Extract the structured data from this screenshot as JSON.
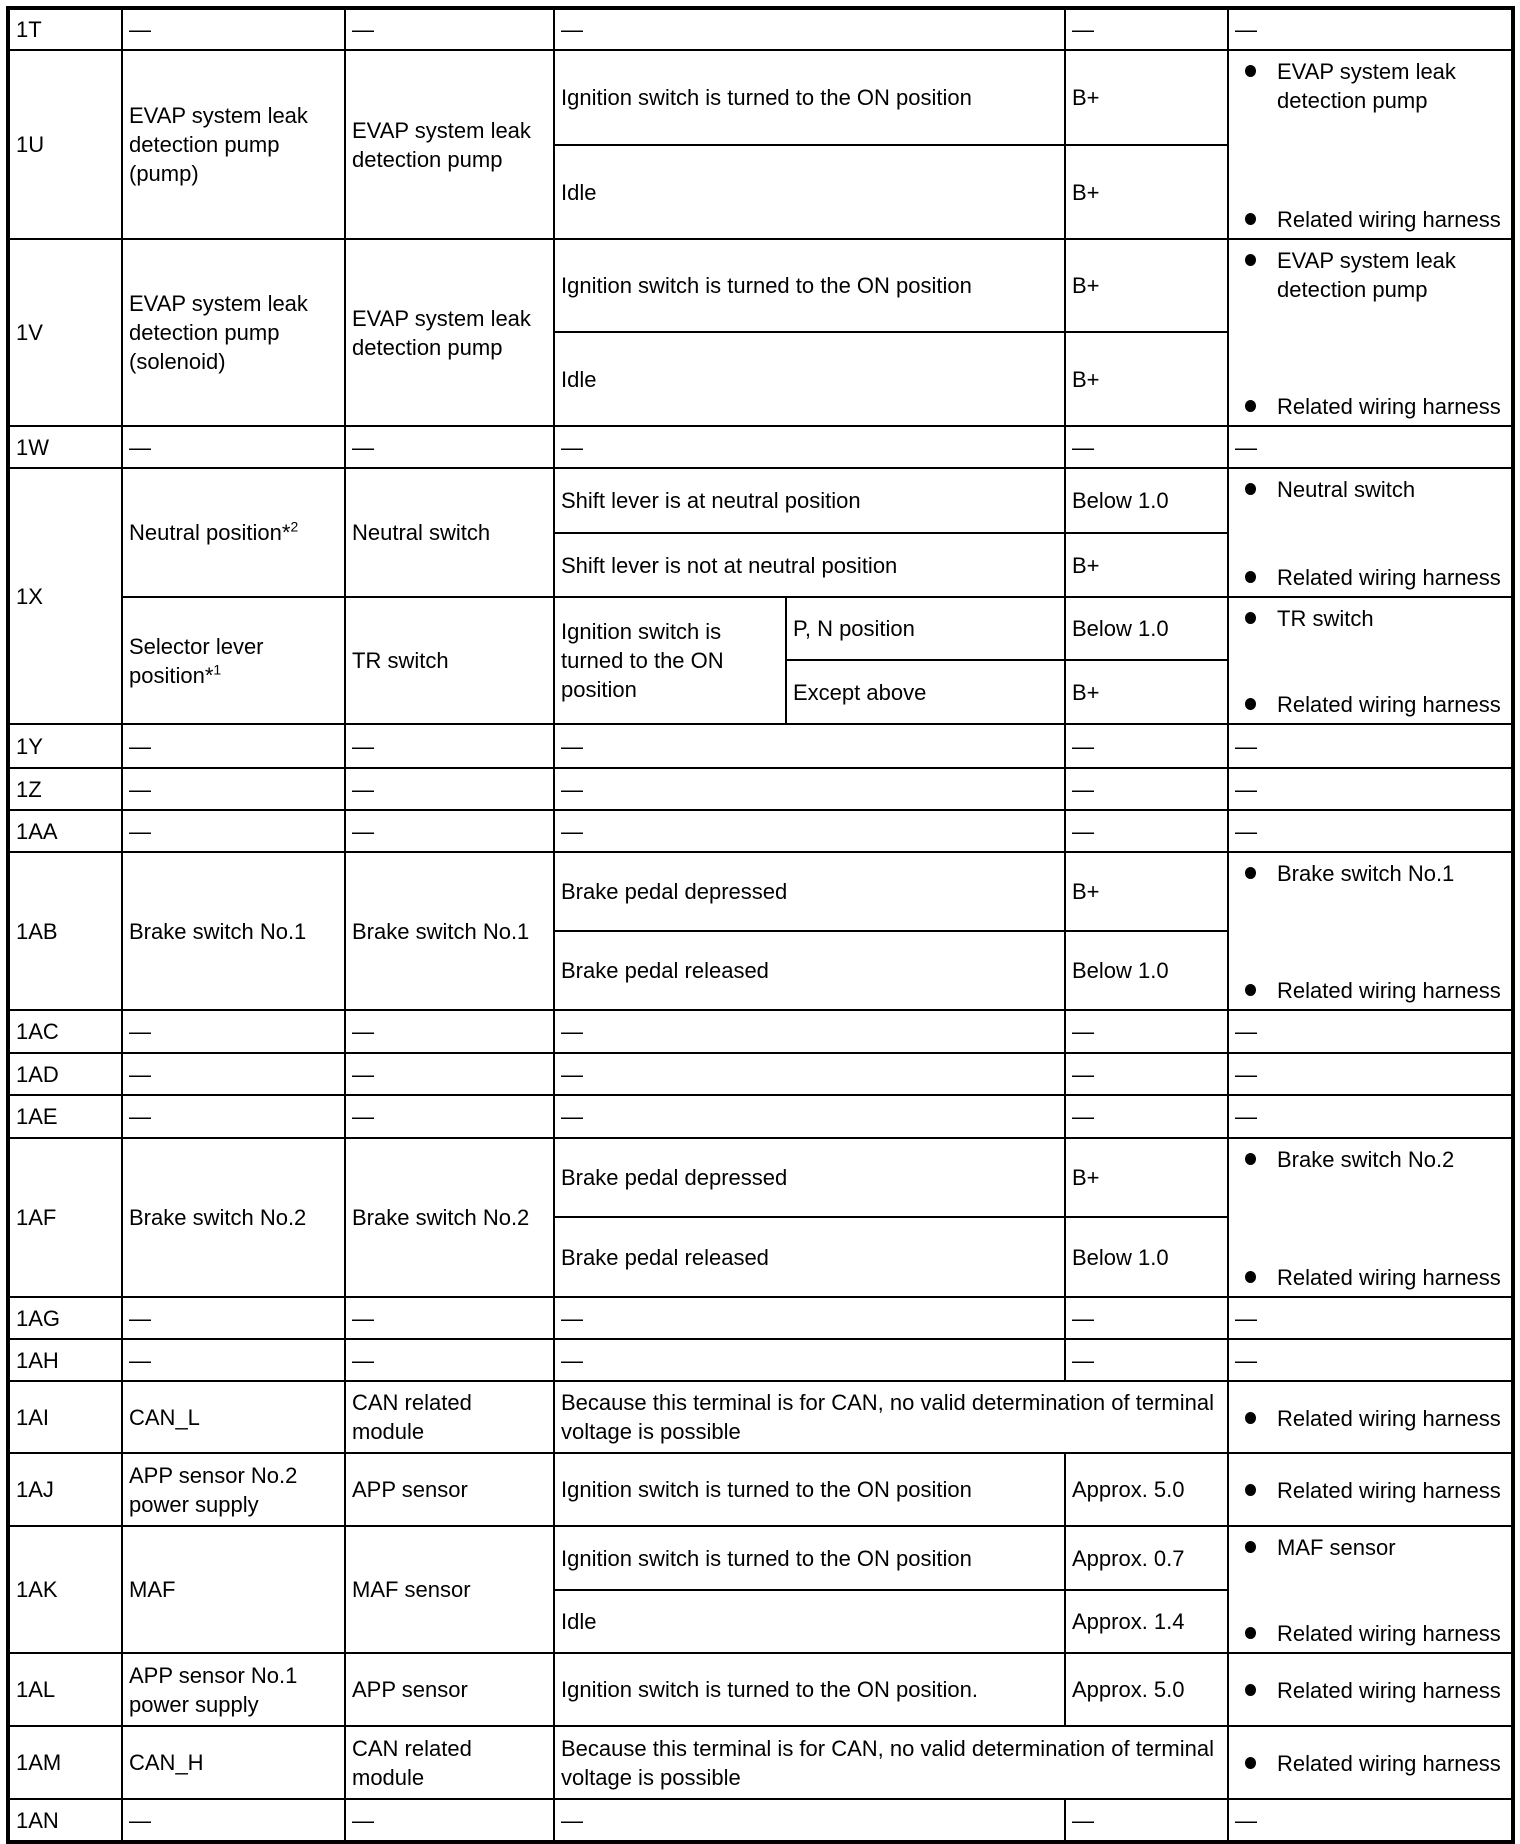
{
  "terminals": [
    {
      "terminal": "1T",
      "parts": [
        {
          "name": "—",
          "connected": "—",
          "conditions": [
            {
              "condition": "—",
              "voltage": "—"
            }
          ],
          "check": "—"
        }
      ]
    },
    {
      "terminal": "1U",
      "parts": [
        {
          "name": "EVAP system leak detection pump (pump)",
          "connected": "EVAP system leak detection pump",
          "conditions": [
            {
              "condition": "Ignition switch is turned to the ON position",
              "voltage": "B+"
            },
            {
              "condition": "Idle",
              "voltage": "B+"
            }
          ],
          "check": [
            "EVAP system leak detection pump",
            "Related wiring harness"
          ]
        }
      ]
    },
    {
      "terminal": "1V",
      "parts": [
        {
          "name": "EVAP system leak detection pump (solenoid)",
          "connected": "EVAP system leak detection pump",
          "conditions": [
            {
              "condition": "Ignition switch is turned to the ON position",
              "voltage": "B+"
            },
            {
              "condition": "Idle",
              "voltage": "B+"
            }
          ],
          "check": [
            "EVAP system leak detection pump",
            "Related wiring harness"
          ]
        }
      ]
    },
    {
      "terminal": "1W",
      "parts": [
        {
          "name": "—",
          "connected": "—",
          "conditions": [
            {
              "condition": "—",
              "voltage": "—"
            }
          ],
          "check": "—"
        }
      ]
    },
    {
      "terminal": "1X",
      "parts": [
        {
          "name": "Neutral position*",
          "name_sup": "2",
          "connected": "Neutral switch",
          "conditions": [
            {
              "condition": "Shift lever is at neutral position",
              "voltage": "Below 1.0"
            },
            {
              "condition": "Shift lever is not at neutral position",
              "voltage": "B+"
            }
          ],
          "check": [
            "Neutral switch",
            "Related wiring harness"
          ]
        },
        {
          "name": "Selector lever position*",
          "name_sup": "1",
          "connected": "TR switch",
          "conditions": [
            {
              "condition": "Ignition switch is turned to the ON position",
              "subs": [
                {
                  "sub": "P, N position",
                  "voltage": "Below 1.0"
                },
                {
                  "sub": "Except above",
                  "voltage": "B+"
                }
              ]
            }
          ],
          "check": [
            "TR switch",
            "Related wiring harness"
          ]
        }
      ]
    },
    {
      "terminal": "1Y",
      "parts": [
        {
          "name": "—",
          "connected": "—",
          "conditions": [
            {
              "condition": "—",
              "voltage": "—"
            }
          ],
          "check": "—"
        }
      ]
    },
    {
      "terminal": "1Z",
      "parts": [
        {
          "name": "—",
          "connected": "—",
          "conditions": [
            {
              "condition": "—",
              "voltage": "—"
            }
          ],
          "check": "—"
        }
      ]
    },
    {
      "terminal": "1AA",
      "parts": [
        {
          "name": "—",
          "connected": "—",
          "conditions": [
            {
              "condition": "—",
              "voltage": "—"
            }
          ],
          "check": "—"
        }
      ]
    },
    {
      "terminal": "1AB",
      "parts": [
        {
          "name": "Brake switch No.1",
          "connected": "Brake switch No.1",
          "conditions": [
            {
              "condition": "Brake pedal depressed",
              "voltage": "B+"
            },
            {
              "condition": "Brake pedal released",
              "voltage": "Below 1.0"
            }
          ],
          "check": [
            "Brake switch No.1",
            "Related wiring harness"
          ]
        }
      ]
    },
    {
      "terminal": "1AC",
      "parts": [
        {
          "name": "—",
          "connected": "—",
          "conditions": [
            {
              "condition": "—",
              "voltage": "—"
            }
          ],
          "check": "—"
        }
      ]
    },
    {
      "terminal": "1AD",
      "parts": [
        {
          "name": "—",
          "connected": "—",
          "conditions": [
            {
              "condition": "—",
              "voltage": "—"
            }
          ],
          "check": "—"
        }
      ]
    },
    {
      "terminal": "1AE",
      "parts": [
        {
          "name": "—",
          "connected": "—",
          "conditions": [
            {
              "condition": "—",
              "voltage": "—"
            }
          ],
          "check": "—"
        }
      ]
    },
    {
      "terminal": "1AF",
      "parts": [
        {
          "name": "Brake switch No.2",
          "connected": "Brake switch No.2",
          "conditions": [
            {
              "condition": "Brake pedal depressed",
              "voltage": "B+"
            },
            {
              "condition": "Brake pedal released",
              "voltage": "Below 1.0"
            }
          ],
          "check": [
            "Brake switch No.2",
            "Related wiring harness"
          ]
        }
      ]
    },
    {
      "terminal": "1AG",
      "parts": [
        {
          "name": "—",
          "connected": "—",
          "conditions": [
            {
              "condition": "—",
              "voltage": "—"
            }
          ],
          "check": "—"
        }
      ]
    },
    {
      "terminal": "1AH",
      "parts": [
        {
          "name": "—",
          "connected": "—",
          "conditions": [
            {
              "condition": "—",
              "voltage": "—"
            }
          ],
          "check": "—"
        }
      ]
    },
    {
      "terminal": "1AI",
      "parts": [
        {
          "name": "CAN_L",
          "connected": "CAN related module",
          "conditions": [
            {
              "condition": "Because this terminal is for CAN, no valid determination of terminal voltage is possible"
            }
          ],
          "check": [
            "Related wiring harness"
          ]
        }
      ]
    },
    {
      "terminal": "1AJ",
      "parts": [
        {
          "name": "APP sensor No.2 power supply",
          "connected": "APP sensor",
          "conditions": [
            {
              "condition": "Ignition switch is turned to the ON position",
              "voltage": "Approx. 5.0"
            }
          ],
          "check": [
            "Related wiring harness"
          ]
        }
      ]
    },
    {
      "terminal": "1AK",
      "parts": [
        {
          "name": "MAF",
          "connected": "MAF sensor",
          "conditions": [
            {
              "condition": "Ignition switch is turned to the ON position",
              "voltage": "Approx. 0.7"
            },
            {
              "condition": "Idle",
              "voltage": "Approx. 1.4"
            }
          ],
          "check": [
            "MAF sensor",
            "Related wiring harness"
          ]
        }
      ]
    },
    {
      "terminal": "1AL",
      "parts": [
        {
          "name": "APP sensor No.1 power supply",
          "connected": "APP sensor",
          "conditions": [
            {
              "condition": "Ignition switch is turned to the ON position.",
              "voltage": "Approx. 5.0"
            }
          ],
          "check": [
            "Related wiring harness"
          ]
        }
      ]
    },
    {
      "terminal": "1AM",
      "parts": [
        {
          "name": "CAN_H",
          "connected": "CAN related module",
          "conditions": [
            {
              "condition": "Because this terminal is for CAN, no valid determination of terminal voltage is possible"
            }
          ],
          "check": [
            "Related wiring harness"
          ]
        }
      ]
    },
    {
      "terminal": "1AN",
      "parts": [
        {
          "name": "—",
          "connected": "—",
          "conditions": [
            {
              "condition": "—",
              "voltage": "—"
            }
          ],
          "check": "—"
        }
      ]
    }
  ]
}
